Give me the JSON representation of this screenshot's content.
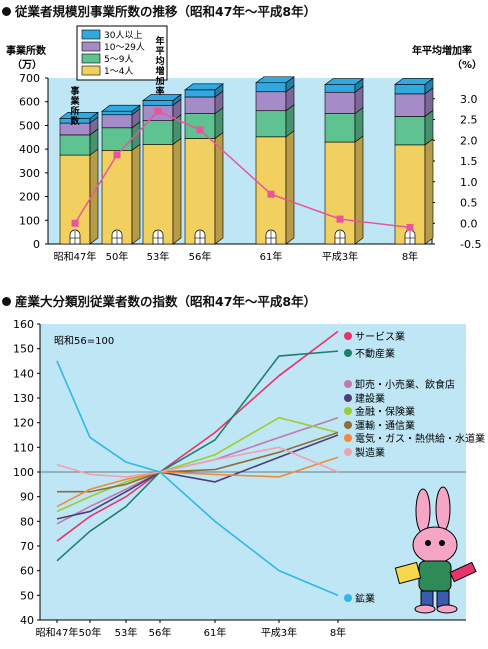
{
  "charts": [
    {
      "title": "従業者規模別事業所数の推移（昭和47年～平成8年）",
      "type": "bar",
      "y_left_label_line1": "事業所数",
      "y_left_label_line2": "（万）",
      "y_right_label_line1": "年平均増加率",
      "y_right_label_line2": "（%）",
      "bar_annotation": "事業所数",
      "line_annotation": "年平均増加率",
      "categories": [
        "昭和47年",
        "50年",
        "53年",
        "56年",
        "61年",
        "平成3年",
        "8年"
      ],
      "ylim_left": [
        0,
        700
      ],
      "yticks_left": [
        "0",
        "100",
        "200",
        "300",
        "400",
        "500",
        "600",
        "700"
      ],
      "ylim_right": [
        -0.5,
        3.5
      ],
      "yticks_right": [
        "-0.5",
        "0.0",
        "0.5",
        "1.0",
        "1.5",
        "2.0",
        "2.5",
        "3.0"
      ],
      "legend": [
        "30人以上",
        "10～29人",
        "5～9人",
        "1～4人"
      ],
      "colors": {
        "1～4人": "#f2d060",
        "5～9人": "#5fc291",
        "10～29人": "#a58bc8",
        "30人以上": "#2fa9df"
      },
      "stacks": [
        {
          "name": "1～4人",
          "values": [
            375,
            395,
            420,
            445,
            452,
            430,
            418
          ]
        },
        {
          "name": "5～9人",
          "values": [
            85,
            95,
            100,
            105,
            110,
            120,
            120
          ]
        },
        {
          "name": "10～29人",
          "values": [
            50,
            55,
            65,
            70,
            80,
            90,
            95
          ]
        },
        {
          "name": "30人以上",
          "values": [
            20,
            15,
            20,
            30,
            38,
            32,
            40
          ]
        }
      ],
      "growth_rate": {
        "values": [
          0.0,
          1.65,
          2.7,
          2.25,
          0.7,
          0.1,
          -0.1
        ],
        "color": "#e8559a"
      },
      "background": "#bfe6f5"
    },
    {
      "title": "産業大分類別従業者数の指数（昭和47年～平成8年）",
      "type": "line",
      "note": "昭和56=100",
      "x": [
        "昭和47年",
        "50年",
        "53年",
        "56年",
        "61年",
        "平成3年",
        "8年"
      ],
      "ylim": [
        40,
        160
      ],
      "yticks": [
        "40",
        "50",
        "60",
        "70",
        "80",
        "90",
        "100",
        "110",
        "120",
        "130",
        "140",
        "150",
        "160"
      ],
      "series": [
        {
          "name": "サービス業",
          "color": "#e8336a",
          "values": [
            72,
            82,
            90,
            100,
            116,
            139,
            157
          ]
        },
        {
          "name": "不動産業",
          "color": "#1e7f6e",
          "values": [
            64,
            76,
            86,
            100,
            113,
            147,
            149
          ]
        },
        {
          "name": "卸売・小売業、飲食店",
          "color": "#c07aaa",
          "values": [
            79,
            86,
            93,
            100,
            105,
            114,
            122
          ]
        },
        {
          "name": "建設業",
          "color": "#4a3f7a",
          "values": [
            81,
            84,
            92,
            100,
            96,
            106,
            115
          ]
        },
        {
          "name": "金融・保険業",
          "color": "#9acd32",
          "values": [
            84,
            90,
            96,
            100,
            107,
            122,
            116
          ]
        },
        {
          "name": "運輸・通信業",
          "color": "#8a6f3a",
          "values": [
            92,
            92,
            95,
            100,
            101,
            108,
            116
          ]
        },
        {
          "name": "電気・ガス・熱供給・水道業",
          "color": "#f08a3c",
          "values": [
            86,
            93,
            97,
            100,
            99,
            98,
            106
          ]
        },
        {
          "name": "製造業",
          "color": "#f2a0b0",
          "values": [
            103,
            99,
            98,
            100,
            105,
            110,
            100
          ]
        },
        {
          "name": "鉱業",
          "color": "#2fb8e6",
          "values": [
            145,
            114,
            104,
            100,
            80,
            60,
            50
          ]
        }
      ],
      "baseline": 100,
      "background": "#bfe6f5"
    }
  ]
}
